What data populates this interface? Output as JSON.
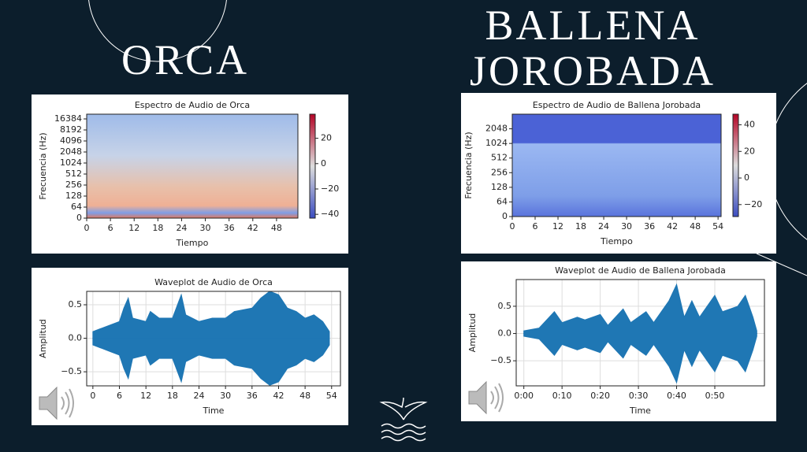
{
  "page": {
    "title_left": "ORCA",
    "title_right": [
      "BALLENA",
      "JOROBADA"
    ]
  },
  "chart_data": [
    {
      "type": "spectrogram",
      "title": "Espectro de Audio de Orca",
      "xlabel": "Tiempo",
      "ylabel": "Frecuencia (Hz)",
      "xlim": [
        0,
        53.4
      ],
      "xticks": [
        0,
        6,
        12,
        18,
        24,
        30,
        36,
        42,
        48
      ],
      "ylim": [
        0,
        22050
      ],
      "yticks": [
        0,
        64,
        128,
        256,
        512,
        1024,
        2048,
        4096,
        8192,
        16384
      ],
      "yscale": "symlog",
      "linthresh": 64,
      "colorbar": {
        "clim": [
          -43,
          39
        ],
        "ticks": [
          20,
          0,
          {
            "value": -20,
            "label": "−20"
          },
          {
            "value": -40,
            "label": "−40"
          }
        ]
      }
    },
    {
      "type": "waveform",
      "title": "Waveplot de Audio de Orca",
      "xlabel": "Time",
      "ylabel": "Amplitud",
      "color": "#1f77b4",
      "xlim": [
        -1.4,
        56
      ],
      "xticks": [
        0,
        6,
        12,
        18,
        24,
        30,
        36,
        42,
        48,
        54
      ],
      "ylim": [
        -0.71,
        0.7
      ],
      "yticks": [
        0.5,
        {
          "value": 0,
          "label": "0.0"
        },
        {
          "value": -0.5,
          "label": "−0.5"
        }
      ],
      "grid": true,
      "x": [
        0,
        2,
        4,
        6,
        7,
        8,
        9,
        12,
        13,
        15,
        18,
        20,
        21,
        24,
        27,
        30,
        32,
        36,
        38,
        40,
        42,
        44,
        46,
        48,
        50,
        52,
        53.5
      ],
      "values": [
        0.1,
        0.15,
        0.2,
        0.25,
        0.45,
        0.6,
        0.3,
        0.25,
        0.4,
        0.3,
        0.3,
        0.65,
        0.35,
        0.25,
        0.3,
        0.3,
        0.4,
        0.45,
        0.6,
        0.7,
        0.65,
        0.45,
        0.4,
        0.3,
        0.35,
        0.25,
        0.1
      ]
    },
    {
      "type": "spectrogram",
      "title": "Espectro de Audio de Ballena Jorobada",
      "xlabel": "Tiempo",
      "ylabel": "Frecuencia (Hz)",
      "xlim": [
        0,
        54.8
      ],
      "xticks": [
        0,
        6,
        12,
        18,
        24,
        30,
        36,
        42,
        48,
        54
      ],
      "ylim": [
        0,
        4096
      ],
      "yticks": [
        0,
        64,
        128,
        256,
        512,
        1024,
        2048
      ],
      "yscale": "symlog",
      "linthresh": 64,
      "colorbar": {
        "clim": [
          -29,
          48
        ],
        "ticks": [
          40,
          20,
          0,
          {
            "value": -20,
            "label": "−20"
          }
        ]
      }
    },
    {
      "type": "waveform",
      "title": "Waveplot de Audio de Ballena Jorobada",
      "xlabel": "Time",
      "ylabel": "Amplitud",
      "color": "#1f77b4",
      "xlim": [
        -2,
        63
      ],
      "xticks": [
        {
          "value": 0,
          "label": "0:00"
        },
        {
          "value": 10,
          "label": "0:10"
        },
        {
          "value": 20,
          "label": "0:20"
        },
        {
          "value": 30,
          "label": "0:30"
        },
        {
          "value": 40,
          "label": "0:40"
        },
        {
          "value": 50,
          "label": "0:50"
        }
      ],
      "ylim": [
        -0.96,
        0.99
      ],
      "yticks": [
        0.5,
        {
          "value": 0,
          "label": "0.0"
        },
        {
          "value": -0.5,
          "label": "−0.5"
        }
      ],
      "grid": true,
      "x": [
        0,
        4,
        8,
        10,
        14,
        16,
        20,
        22,
        26,
        28,
        32,
        34,
        38,
        40,
        42,
        44,
        46,
        50,
        52,
        56,
        58,
        60,
        61
      ],
      "values": [
        0.05,
        0.1,
        0.4,
        0.2,
        0.3,
        0.25,
        0.35,
        0.15,
        0.45,
        0.2,
        0.4,
        0.2,
        0.6,
        0.9,
        0.3,
        0.6,
        0.3,
        0.7,
        0.4,
        0.5,
        0.7,
        0.3,
        0.05
      ]
    }
  ]
}
